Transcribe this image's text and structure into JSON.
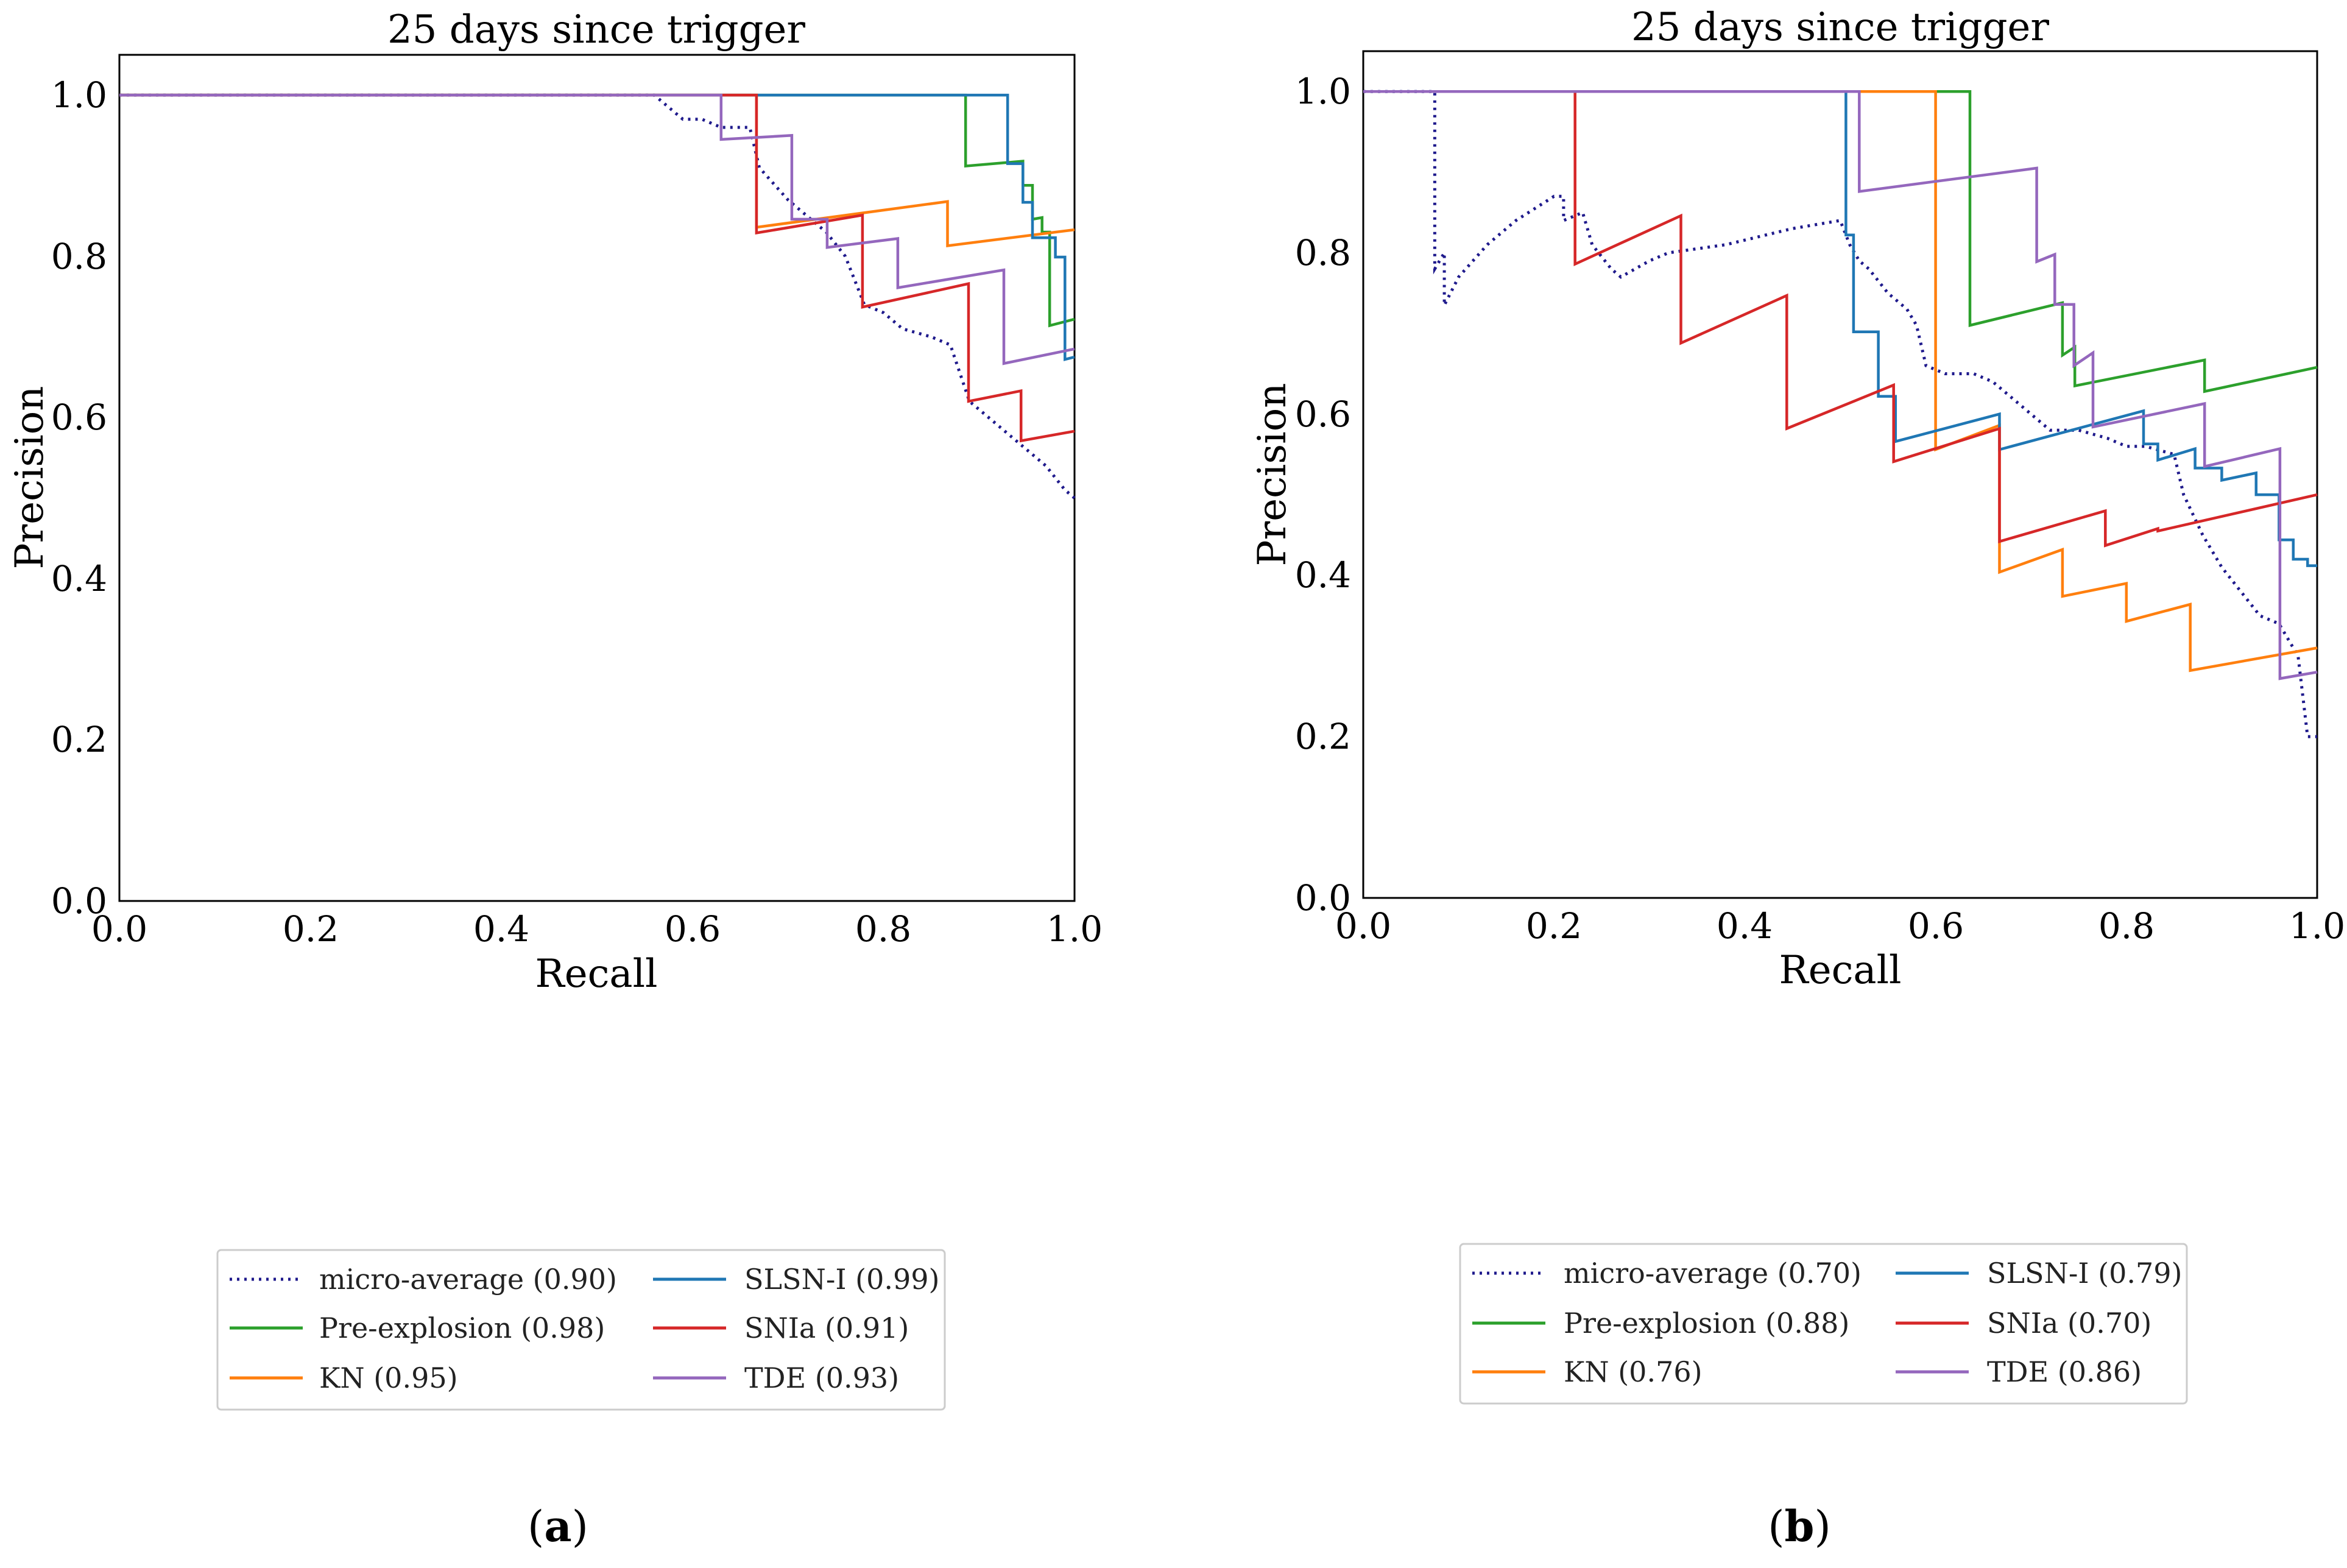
{
  "chart_data": [
    {
      "type": "line",
      "title": "25 days since trigger",
      "xlabel": "Recall",
      "ylabel": "Precision",
      "xlim": [
        0,
        1
      ],
      "ylim": [
        0,
        1.05
      ],
      "xticks": [
        "0.0",
        "0.2",
        "0.4",
        "0.6",
        "0.8",
        "1.0"
      ],
      "yticks": [
        "0.0",
        "0.2",
        "0.4",
        "0.6",
        "0.8",
        "1.0"
      ],
      "grid": false,
      "legend_position": "below",
      "panel_letter": "a",
      "series": [
        {
          "name": "micro-average (0.90)",
          "color": "#1f1a8c",
          "dashed": true,
          "points": [
            [
              0,
              1.0
            ],
            [
              0.56,
              1.0
            ],
            [
              0.57,
              0.99
            ],
            [
              0.59,
              0.97
            ],
            [
              0.61,
              0.97
            ],
            [
              0.63,
              0.96
            ],
            [
              0.66,
              0.96
            ],
            [
              0.67,
              0.91
            ],
            [
              0.7,
              0.87
            ],
            [
              0.72,
              0.85
            ],
            [
              0.74,
              0.83
            ],
            [
              0.76,
              0.8
            ],
            [
              0.78,
              0.74
            ],
            [
              0.8,
              0.73
            ],
            [
              0.82,
              0.71
            ],
            [
              0.85,
              0.7
            ],
            [
              0.87,
              0.69
            ],
            [
              0.89,
              0.62
            ],
            [
              0.91,
              0.6
            ],
            [
              0.93,
              0.58
            ],
            [
              0.95,
              0.56
            ],
            [
              0.97,
              0.54
            ],
            [
              0.99,
              0.51
            ],
            [
              1.0,
              0.5
            ]
          ]
        },
        {
          "name": "Pre-explosion (0.98)",
          "color": "#2ca02c",
          "points": [
            [
              0,
              1.0
            ],
            [
              0.886,
              1.0
            ],
            [
              0.886,
              0.912
            ],
            [
              0.946,
              0.918
            ],
            [
              0.946,
              0.888
            ],
            [
              0.956,
              0.888
            ],
            [
              0.956,
              0.846
            ],
            [
              0.966,
              0.848
            ],
            [
              0.966,
              0.83
            ],
            [
              0.974,
              0.83
            ],
            [
              0.974,
              0.714
            ],
            [
              1.0,
              0.722
            ]
          ]
        },
        {
          "name": "KN (0.95)",
          "color": "#ff7f0e",
          "points": [
            [
              0,
              1.0
            ],
            [
              0.667,
              1.0
            ],
            [
              0.667,
              0.836
            ],
            [
              0.867,
              0.868
            ],
            [
              0.867,
              0.813
            ],
            [
              1.0,
              0.833
            ]
          ]
        },
        {
          "name": "SLSN-I (0.99)",
          "color": "#1f77b4",
          "points": [
            [
              0,
              1.0
            ],
            [
              0.93,
              1.0
            ],
            [
              0.93,
              0.915
            ],
            [
              0.946,
              0.915
            ],
            [
              0.946,
              0.867
            ],
            [
              0.956,
              0.867
            ],
            [
              0.956,
              0.823
            ],
            [
              0.98,
              0.823
            ],
            [
              0.98,
              0.799
            ],
            [
              0.99,
              0.799
            ],
            [
              0.99,
              0.672
            ],
            [
              1.0,
              0.675
            ]
          ]
        },
        {
          "name": "SNIa (0.91)",
          "color": "#d62728",
          "points": [
            [
              0,
              1.0
            ],
            [
              0.667,
              1.0
            ],
            [
              0.667,
              0.829
            ],
            [
              0.778,
              0.851
            ],
            [
              0.778,
              0.737
            ],
            [
              0.889,
              0.766
            ],
            [
              0.889,
              0.62
            ],
            [
              0.944,
              0.633
            ],
            [
              0.944,
              0.571
            ],
            [
              1.0,
              0.583
            ]
          ]
        },
        {
          "name": "TDE (0.93)",
          "color": "#9467bd",
          "points": [
            [
              0,
              1.0
            ],
            [
              0.63,
              1.0
            ],
            [
              0.63,
              0.945
            ],
            [
              0.704,
              0.95
            ],
            [
              0.704,
              0.846
            ],
            [
              0.741,
              0.846
            ],
            [
              0.741,
              0.811
            ],
            [
              0.815,
              0.822
            ],
            [
              0.815,
              0.761
            ],
            [
              0.926,
              0.783
            ],
            [
              0.926,
              0.667
            ],
            [
              1.0,
              0.685
            ]
          ]
        }
      ]
    },
    {
      "type": "line",
      "title": "25 days since trigger",
      "xlabel": "Recall",
      "ylabel": "Precision",
      "xlim": [
        0,
        1
      ],
      "ylim": [
        0,
        1.05
      ],
      "xticks": [
        "0.0",
        "0.2",
        "0.4",
        "0.6",
        "0.8",
        "1.0"
      ],
      "yticks": [
        "0.0",
        "0.2",
        "0.4",
        "0.6",
        "0.8",
        "1.0"
      ],
      "grid": false,
      "legend_position": "below",
      "panel_letter": "b",
      "series": [
        {
          "name": "micro-average (0.70)",
          "color": "#1f1a8c",
          "dashed": true,
          "points": [
            [
              0,
              1.0
            ],
            [
              0.075,
              1.0
            ],
            [
              0.075,
              0.78
            ],
            [
              0.085,
              0.8
            ],
            [
              0.085,
              0.735
            ],
            [
              0.1,
              0.77
            ],
            [
              0.13,
              0.81
            ],
            [
              0.16,
              0.84
            ],
            [
              0.2,
              0.87
            ],
            [
              0.21,
              0.87
            ],
            [
              0.21,
              0.84
            ],
            [
              0.23,
              0.85
            ],
            [
              0.24,
              0.81
            ],
            [
              0.26,
              0.78
            ],
            [
              0.27,
              0.77
            ],
            [
              0.3,
              0.79
            ],
            [
              0.32,
              0.8
            ],
            [
              0.38,
              0.81
            ],
            [
              0.45,
              0.83
            ],
            [
              0.5,
              0.84
            ],
            [
              0.51,
              0.81
            ],
            [
              0.52,
              0.79
            ],
            [
              0.53,
              0.78
            ],
            [
              0.55,
              0.75
            ],
            [
              0.57,
              0.73
            ],
            [
              0.58,
              0.71
            ],
            [
              0.59,
              0.66
            ],
            [
              0.61,
              0.65
            ],
            [
              0.64,
              0.65
            ],
            [
              0.66,
              0.64
            ],
            [
              0.68,
              0.62
            ],
            [
              0.7,
              0.6
            ],
            [
              0.72,
              0.58
            ],
            [
              0.75,
              0.58
            ],
            [
              0.78,
              0.57
            ],
            [
              0.8,
              0.56
            ],
            [
              0.82,
              0.56
            ],
            [
              0.85,
              0.55
            ],
            [
              0.86,
              0.5
            ],
            [
              0.88,
              0.45
            ],
            [
              0.9,
              0.41
            ],
            [
              0.92,
              0.38
            ],
            [
              0.94,
              0.35
            ],
            [
              0.96,
              0.34
            ],
            [
              0.98,
              0.3
            ],
            [
              0.99,
              0.2
            ],
            [
              1.0,
              0.2
            ]
          ]
        },
        {
          "name": "Pre-explosion (0.88)",
          "color": "#2ca02c",
          "points": [
            [
              0,
              1.0
            ],
            [
              0.636,
              1.0
            ],
            [
              0.636,
              0.71
            ],
            [
              0.733,
              0.738
            ],
            [
              0.733,
              0.673
            ],
            [
              0.746,
              0.683
            ],
            [
              0.746,
              0.635
            ],
            [
              0.882,
              0.667
            ],
            [
              0.882,
              0.628
            ],
            [
              1.0,
              0.658
            ]
          ]
        },
        {
          "name": "KN (0.76)",
          "color": "#ff7f0e",
          "points": [
            [
              0,
              1.0
            ],
            [
              0.6,
              1.0
            ],
            [
              0.6,
              0.556
            ],
            [
              0.667,
              0.586
            ],
            [
              0.667,
              0.404
            ],
            [
              0.733,
              0.432
            ],
            [
              0.733,
              0.374
            ],
            [
              0.8,
              0.39
            ],
            [
              0.8,
              0.343
            ],
            [
              0.867,
              0.364
            ],
            [
              0.867,
              0.282
            ],
            [
              1.0,
              0.31
            ]
          ]
        },
        {
          "name": "SLSN-I (0.79)",
          "color": "#1f77b4",
          "points": [
            [
              0,
              1.0
            ],
            [
              0.506,
              1.0
            ],
            [
              0.506,
              0.822
            ],
            [
              0.514,
              0.822
            ],
            [
              0.514,
              0.702
            ],
            [
              0.54,
              0.702
            ],
            [
              0.54,
              0.622
            ],
            [
              0.558,
              0.622
            ],
            [
              0.558,
              0.566
            ],
            [
              0.667,
              0.6
            ],
            [
              0.667,
              0.556
            ],
            [
              0.818,
              0.604
            ],
            [
              0.818,
              0.563
            ],
            [
              0.833,
              0.563
            ],
            [
              0.833,
              0.543
            ],
            [
              0.872,
              0.557
            ],
            [
              0.872,
              0.533
            ],
            [
              0.9,
              0.533
            ],
            [
              0.9,
              0.518
            ],
            [
              0.936,
              0.527
            ],
            [
              0.936,
              0.5
            ],
            [
              0.96,
              0.5
            ],
            [
              0.96,
              0.444
            ],
            [
              0.975,
              0.444
            ],
            [
              0.975,
              0.42
            ],
            [
              0.99,
              0.42
            ],
            [
              0.99,
              0.412
            ],
            [
              1.0,
              0.412
            ]
          ]
        },
        {
          "name": "SNIa (0.70)",
          "color": "#d62728",
          "points": [
            [
              0,
              1.0
            ],
            [
              0.222,
              1.0
            ],
            [
              0.222,
              0.786
            ],
            [
              0.333,
              0.846
            ],
            [
              0.333,
              0.688
            ],
            [
              0.444,
              0.747
            ],
            [
              0.444,
              0.582
            ],
            [
              0.556,
              0.636
            ],
            [
              0.556,
              0.541
            ],
            [
              0.667,
              0.582
            ],
            [
              0.667,
              0.442
            ],
            [
              0.778,
              0.48
            ],
            [
              0.778,
              0.437
            ],
            [
              0.833,
              0.458
            ],
            [
              0.833,
              0.455
            ],
            [
              1.0,
              0.5
            ]
          ]
        },
        {
          "name": "TDE (0.86)",
          "color": "#9467bd",
          "points": [
            [
              0,
              1.0
            ],
            [
              0.52,
              1.0
            ],
            [
              0.52,
              0.876
            ],
            [
              0.706,
              0.905
            ],
            [
              0.706,
              0.789
            ],
            [
              0.725,
              0.798
            ],
            [
              0.725,
              0.736
            ],
            [
              0.745,
              0.736
            ],
            [
              0.745,
              0.66
            ],
            [
              0.765,
              0.676
            ],
            [
              0.765,
              0.584
            ],
            [
              0.882,
              0.613
            ],
            [
              0.882,
              0.535
            ],
            [
              0.961,
              0.557
            ],
            [
              0.961,
              0.272
            ],
            [
              1.0,
              0.28
            ]
          ]
        }
      ]
    }
  ]
}
